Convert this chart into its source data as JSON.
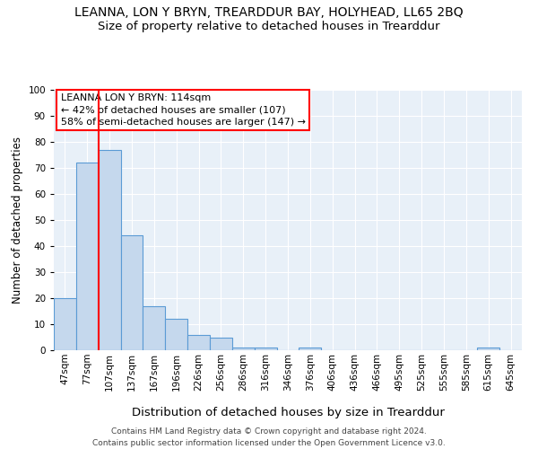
{
  "title": "LEANNA, LON Y BRYN, TREARDDUR BAY, HOLYHEAD, LL65 2BQ",
  "subtitle": "Size of property relative to detached houses in Trearddur",
  "xlabel": "Distribution of detached houses by size in Trearddur",
  "ylabel": "Number of detached properties",
  "bar_color": "#c5d8ed",
  "bar_edge_color": "#5b9bd5",
  "background_color": "#e8f0f8",
  "grid_color": "#ffffff",
  "categories": [
    "47sqm",
    "77sqm",
    "107sqm",
    "137sqm",
    "167sqm",
    "196sqm",
    "226sqm",
    "256sqm",
    "286sqm",
    "316sqm",
    "346sqm",
    "376sqm",
    "406sqm",
    "436sqm",
    "466sqm",
    "495sqm",
    "525sqm",
    "555sqm",
    "585sqm",
    "615sqm",
    "645sqm"
  ],
  "values": [
    20,
    72,
    77,
    44,
    17,
    12,
    6,
    5,
    1,
    1,
    0,
    1,
    0,
    0,
    0,
    0,
    0,
    0,
    0,
    1,
    0
  ],
  "red_line_index": 2,
  "annotation_text": "LEANNA LON Y BRYN: 114sqm\n← 42% of detached houses are smaller (107)\n58% of semi-detached houses are larger (147) →",
  "ylim": [
    0,
    100
  ],
  "yticks": [
    0,
    10,
    20,
    30,
    40,
    50,
    60,
    70,
    80,
    90,
    100
  ],
  "footer": "Contains HM Land Registry data © Crown copyright and database right 2024.\nContains public sector information licensed under the Open Government Licence v3.0.",
  "title_fontsize": 10,
  "subtitle_fontsize": 9.5,
  "xlabel_fontsize": 9.5,
  "ylabel_fontsize": 8.5,
  "annotation_fontsize": 8,
  "footer_fontsize": 6.5,
  "tick_fontsize": 7.5
}
